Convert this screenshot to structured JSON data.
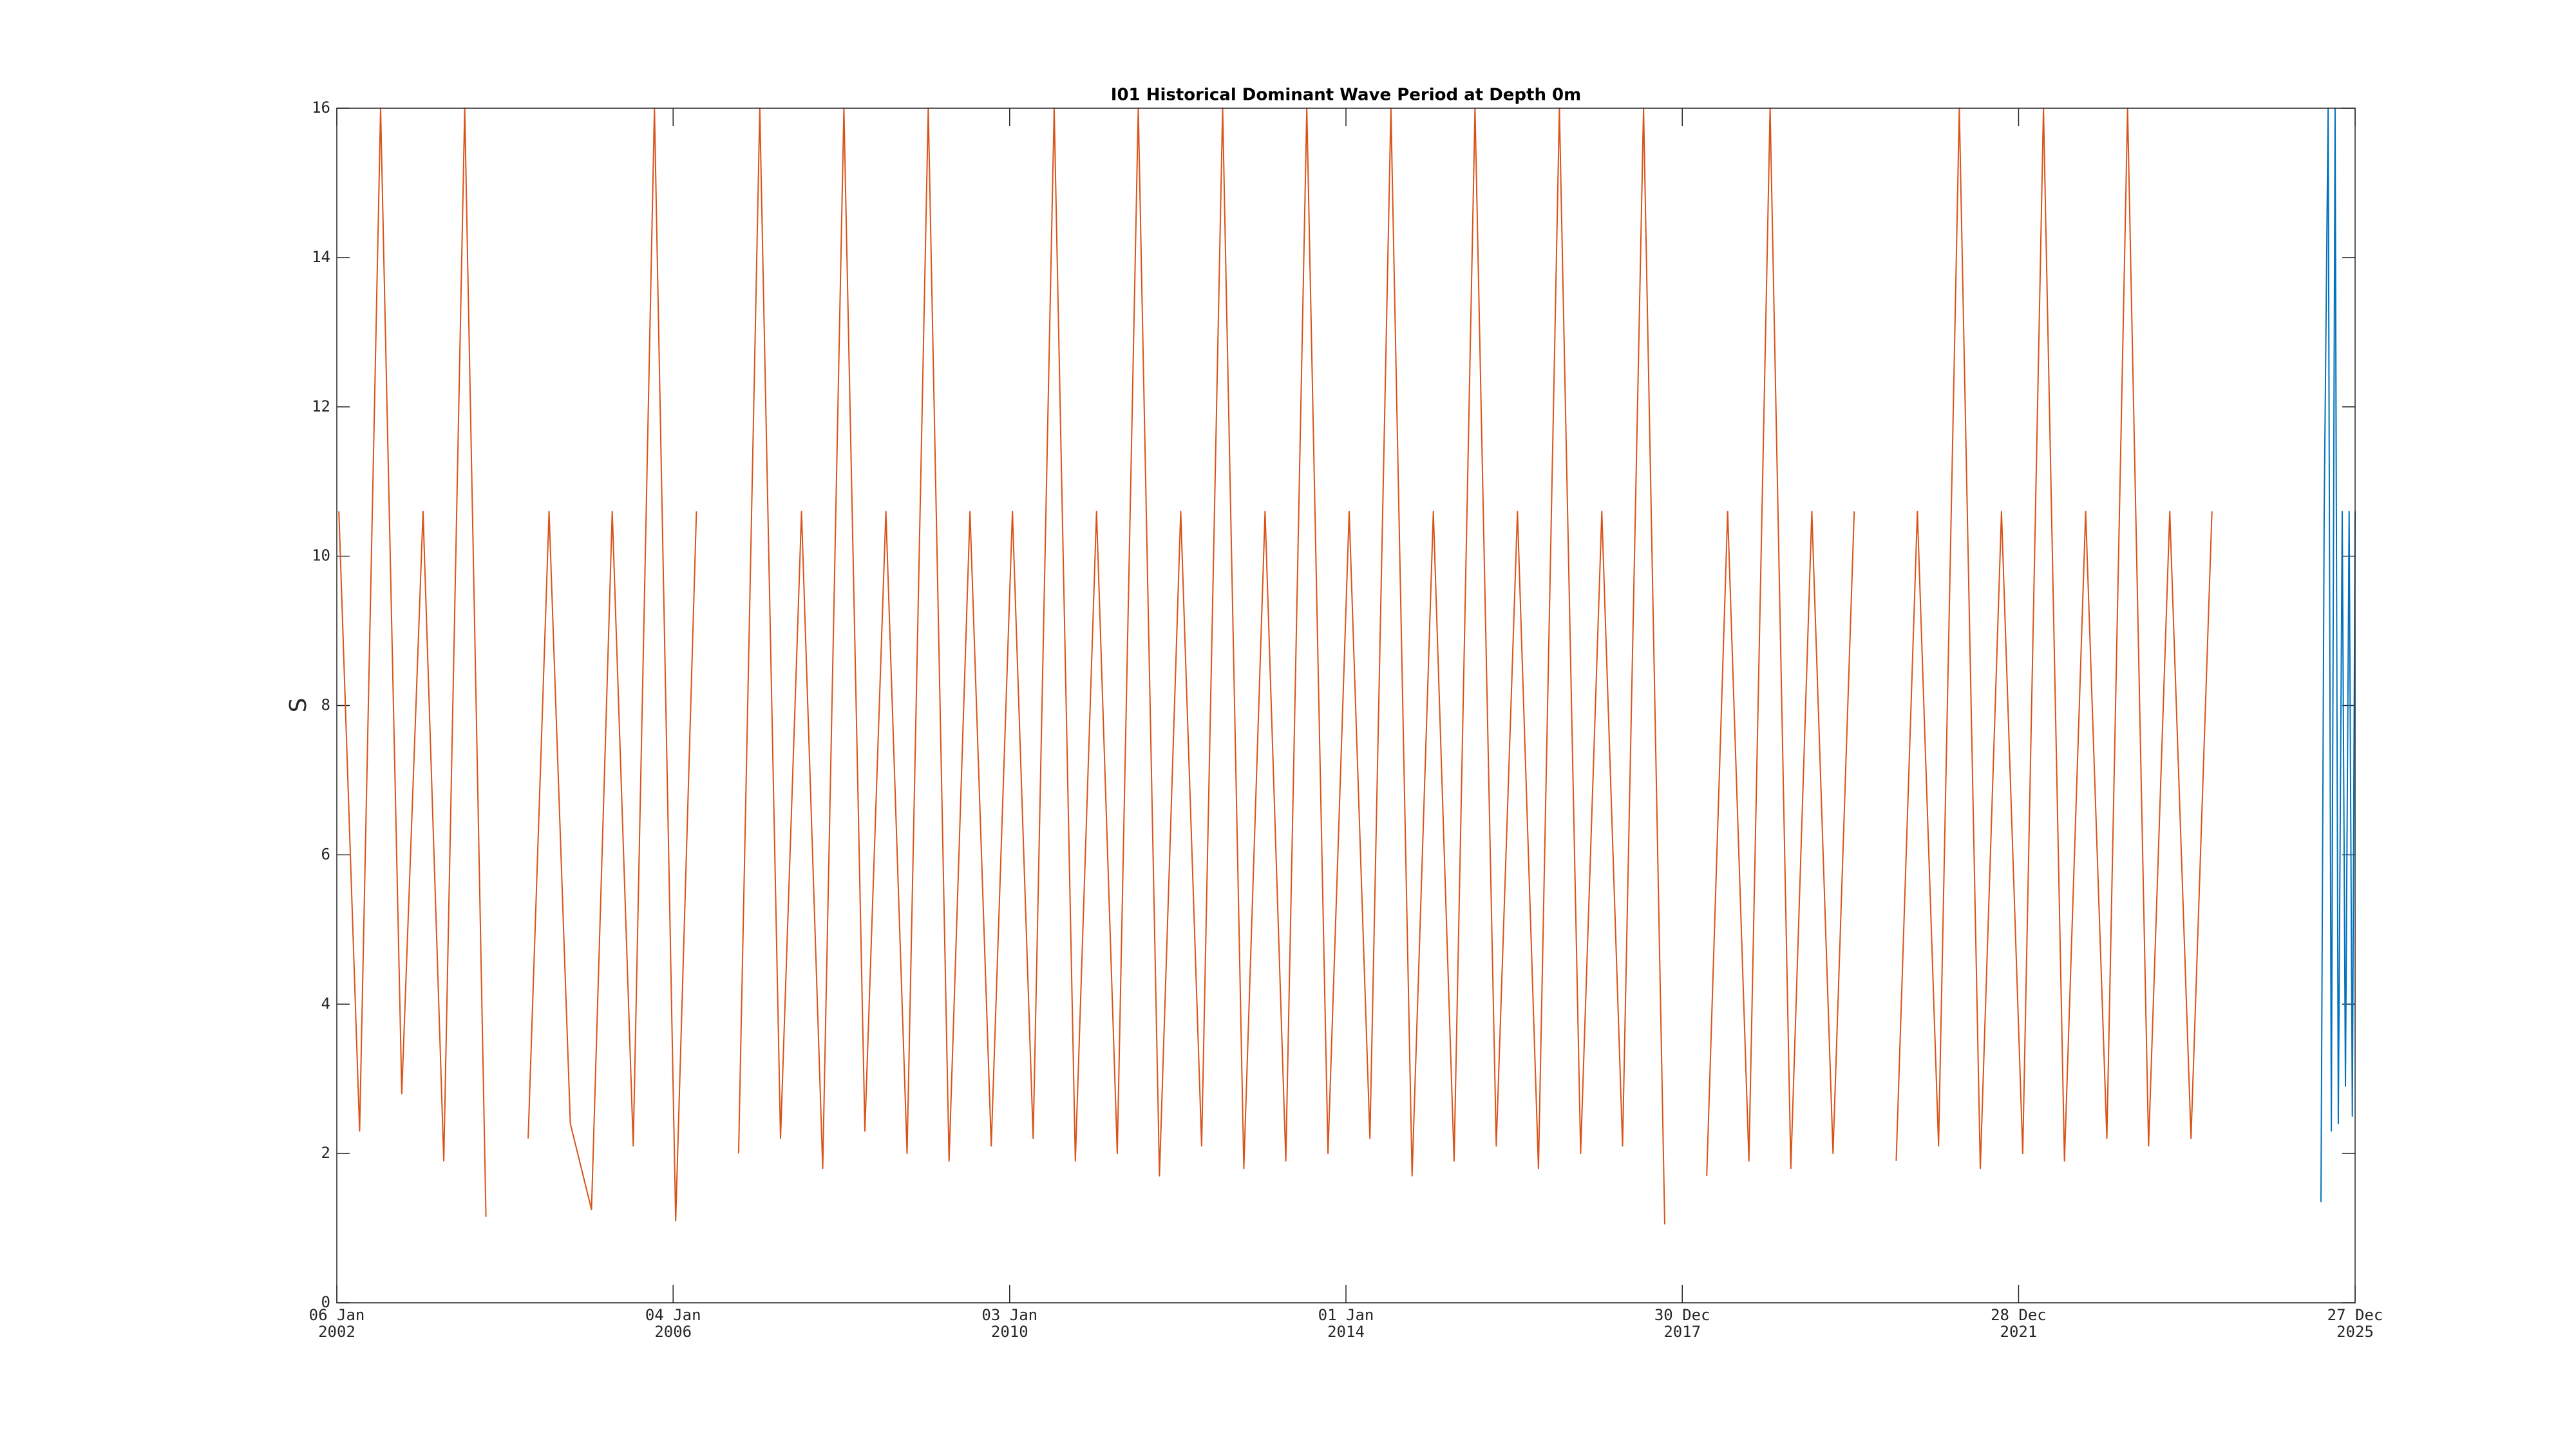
{
  "chart_data": {
    "type": "line",
    "title": "I01 Historical Dominant Wave Period at Depth 0m",
    "ylabel": "S",
    "xlim": [
      "2002-01-06",
      "2025-12-27"
    ],
    "xticks": [
      {
        "value": "2002-01-06",
        "label": [
          "06 Jan",
          "2002"
        ]
      },
      {
        "value": "2006-01-04",
        "label": [
          "04 Jan",
          "2006"
        ]
      },
      {
        "value": "2010-01-03",
        "label": [
          "03 Jan",
          "2010"
        ]
      },
      {
        "value": "2014-01-01",
        "label": [
          "01 Jan",
          "2014"
        ]
      },
      {
        "value": "2017-12-30",
        "label": [
          "30 Dec",
          "2017"
        ]
      },
      {
        "value": "2021-12-28",
        "label": [
          "28 Dec",
          "2021"
        ]
      },
      {
        "value": "2025-12-27",
        "label": [
          "27 Dec",
          "2025"
        ]
      }
    ],
    "ylim": [
      0,
      16
    ],
    "yticks": [
      0,
      2,
      4,
      6,
      8,
      10,
      12,
      14,
      16
    ],
    "grid": false,
    "series": [
      {
        "color": "#d95319",
        "x": [
          "2002-01-15",
          "2002-04-15",
          "2002-07-15",
          "2002-10-15",
          "2003-01-15",
          "2003-04-15",
          "2003-07-15",
          "2003-10-15",
          "2004-01-15",
          "2004-04-15",
          "2004-07-15",
          "2004-10-15",
          "2005-01-15",
          "2005-04-15",
          "2005-07-15",
          "2005-10-15",
          "2006-01-15",
          "2006-04-15",
          "2006-07-15",
          "2006-10-15",
          "2007-01-15",
          "2007-04-15",
          "2007-07-15",
          "2007-10-15",
          "2008-01-15",
          "2008-04-15",
          "2008-07-15",
          "2008-10-15",
          "2009-01-15",
          "2009-04-15",
          "2009-07-15",
          "2009-10-15",
          "2010-01-15",
          "2010-04-15",
          "2010-07-15",
          "2010-10-15",
          "2011-01-15",
          "2011-04-15",
          "2011-07-15",
          "2011-10-15",
          "2012-01-15",
          "2012-04-15",
          "2012-07-15",
          "2012-10-15",
          "2013-01-15",
          "2013-04-15",
          "2013-07-15",
          "2013-10-15",
          "2014-01-15",
          "2014-04-15",
          "2014-07-15",
          "2014-10-15",
          "2015-01-15",
          "2015-04-15",
          "2015-07-15",
          "2015-10-15",
          "2016-01-15",
          "2016-04-15",
          "2016-07-15",
          "2016-10-15",
          "2017-01-15",
          "2017-04-15",
          "2017-07-15",
          "2017-10-15",
          "2018-01-15",
          "2018-04-15",
          "2018-07-15",
          "2018-10-15",
          "2019-01-15",
          "2019-04-15",
          "2019-07-15",
          "2019-10-15",
          "2020-01-15",
          "2020-04-15",
          "2020-07-15",
          "2020-10-15",
          "2021-01-15",
          "2021-04-15",
          "2021-07-15",
          "2021-10-15",
          "2022-01-15",
          "2022-04-15",
          "2022-07-15",
          "2022-10-15",
          "2023-01-15",
          "2023-04-15",
          "2023-07-15",
          "2023-10-15",
          "2024-01-15",
          "2024-04-15"
        ],
        "values": [
          10.6,
          2.3,
          16,
          2.8,
          10.6,
          1.9,
          16,
          1.15,
          null,
          2.2,
          10.6,
          2.4,
          1.25,
          10.6,
          2.1,
          16,
          1.1,
          10.6,
          null,
          2.0,
          16,
          2.2,
          10.6,
          1.8,
          16,
          2.3,
          10.6,
          2.0,
          16,
          1.9,
          10.6,
          2.1,
          10.6,
          2.2,
          16,
          1.9,
          10.6,
          2.0,
          16,
          1.7,
          10.6,
          2.1,
          16,
          1.8,
          10.6,
          1.9,
          16,
          2.0,
          10.6,
          2.2,
          16,
          1.7,
          10.6,
          1.9,
          16,
          2.1,
          10.6,
          1.8,
          16,
          2.0,
          10.6,
          2.1,
          16,
          1.05,
          null,
          1.7,
          10.6,
          1.9,
          16,
          1.8,
          10.6,
          2.0,
          10.6,
          null,
          1.9,
          10.6,
          2.1,
          16,
          1.8,
          10.6,
          2.0,
          16,
          1.9,
          10.6,
          2.2,
          16,
          2.1,
          10.6,
          2.2,
          10.6
        ]
      },
      {
        "color": "#0072bd",
        "x": [
          "2025-08-01",
          "2025-08-15",
          "2025-09-01",
          "2025-09-15",
          "2025-10-01",
          "2025-10-15",
          "2025-11-01",
          "2025-11-15",
          "2025-12-01",
          "2025-12-15",
          "2025-12-27"
        ],
        "values": [
          1.35,
          10.6,
          16,
          2.3,
          16,
          2.4,
          10.6,
          2.9,
          10.6,
          2.5,
          10.6
        ]
      }
    ]
  }
}
